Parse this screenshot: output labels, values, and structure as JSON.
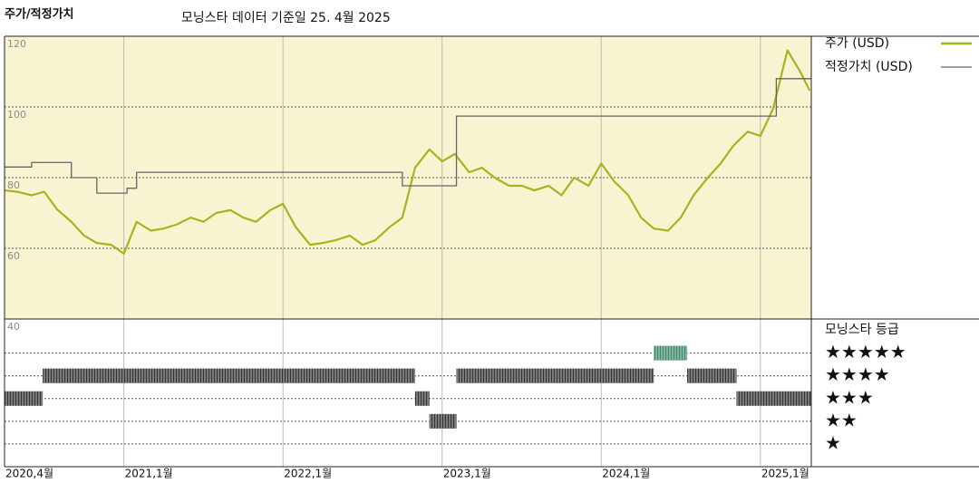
{
  "chart_data": [
    {
      "type": "line",
      "title": "주가/적정가치",
      "subtitle": "모닝스타 데이터 기준일 25. 4월 2025",
      "xlim": [
        2020.25,
        2025.32
      ],
      "xticks": [
        {
          "value": 2020.25,
          "label": "2020,4월"
        },
        {
          "value": 2021,
          "label": "2021,1월"
        },
        {
          "value": 2022,
          "label": "2022,1월"
        },
        {
          "value": 2023,
          "label": "2023,1월"
        },
        {
          "value": 2024,
          "label": "2024,1월"
        },
        {
          "value": 2025,
          "label": "2025,1월"
        }
      ],
      "ylim": [
        40,
        120
      ],
      "yticks": [
        40,
        60,
        80,
        100,
        120
      ],
      "grid": true,
      "background": "#f8f4d2",
      "series": [
        {
          "name": "주가 (USD)",
          "color": "#a9b21f",
          "x": [
            2020.25,
            2020.33,
            2020.42,
            2020.5,
            2020.58,
            2020.67,
            2020.75,
            2020.83,
            2020.92,
            2021.0,
            2021.08,
            2021.17,
            2021.25,
            2021.33,
            2021.42,
            2021.5,
            2021.58,
            2021.67,
            2021.75,
            2021.83,
            2021.92,
            2022.0,
            2022.08,
            2022.17,
            2022.25,
            2022.33,
            2022.42,
            2022.5,
            2022.58,
            2022.67,
            2022.75,
            2022.83,
            2022.92,
            2023.0,
            2023.08,
            2023.17,
            2023.25,
            2023.33,
            2023.42,
            2023.5,
            2023.58,
            2023.67,
            2023.75,
            2023.83,
            2023.92,
            2024.0,
            2024.08,
            2024.17,
            2024.25,
            2024.33,
            2024.42,
            2024.5,
            2024.58,
            2024.67,
            2024.75,
            2024.83,
            2024.92,
            2025.0,
            2025.08,
            2025.17,
            2025.25,
            2025.31
          ],
          "values": [
            76.4,
            76,
            75,
            76,
            71,
            67.5,
            63.6,
            61.5,
            61,
            58.5,
            67.5,
            65,
            65.6,
            66.7,
            68.7,
            67.5,
            70,
            70.8,
            68.7,
            67.5,
            70.8,
            72.6,
            66,
            61,
            61.5,
            62.3,
            63.6,
            61,
            62.3,
            66,
            68.7,
            82.8,
            88,
            84.6,
            86.7,
            81.5,
            82.8,
            80,
            77.7,
            77.7,
            76.4,
            77.7,
            75,
            80,
            77.7,
            84,
            79,
            75,
            68.7,
            65.6,
            65,
            68.7,
            75,
            80,
            84,
            89,
            93,
            91.8,
            99.5,
            116,
            110,
            104.6
          ]
        },
        {
          "name": "적정가치 (USD)",
          "color": "#666666",
          "drawstyle": "steps-post",
          "x": [
            2020.25,
            2020.42,
            2020.67,
            2020.83,
            2021.02,
            2021.08,
            2022.75,
            2023.09,
            2025.1,
            2025.32
          ],
          "values": [
            83,
            84.3,
            80,
            75.6,
            77,
            81.5,
            77.7,
            97.4,
            108,
            108
          ]
        }
      ]
    },
    {
      "type": "rating",
      "title": "모닝스타 등급",
      "xlim": [
        2020.25,
        2025.32
      ],
      "ylim": [
        0,
        6.5
      ],
      "yticks": [
        {
          "value": 5,
          "label": "★★★★★"
        },
        {
          "value": 4,
          "label": "★★★★"
        },
        {
          "value": 3,
          "label": "★★★"
        },
        {
          "value": 2,
          "label": "★★"
        },
        {
          "value": 1,
          "label": "★"
        }
      ],
      "color": "#333333",
      "highlight_color": "#3d8a6c",
      "x": [
        2020.25,
        2020.49,
        2022.83,
        2022.92,
        2023.09,
        2024.33,
        2024.54,
        2024.85
      ],
      "values": [
        3,
        4,
        3,
        2,
        4,
        5,
        4,
        3
      ]
    }
  ]
}
